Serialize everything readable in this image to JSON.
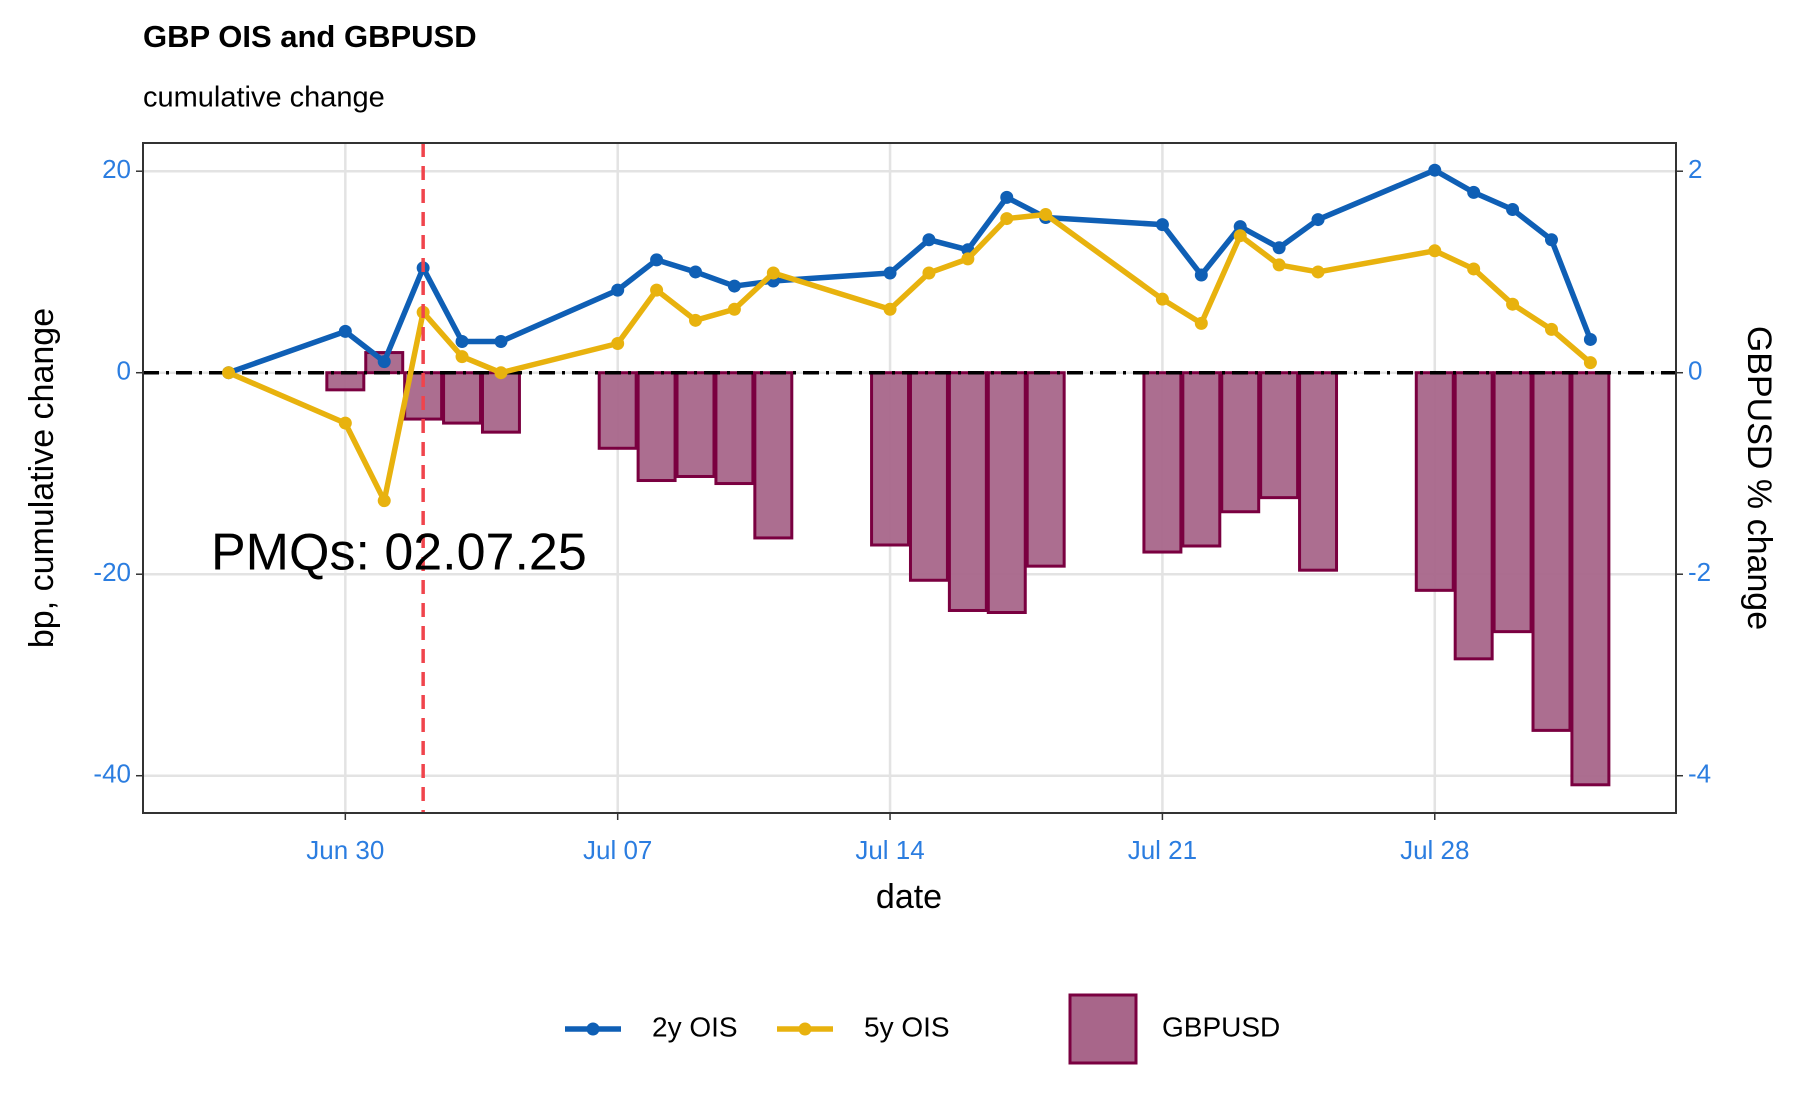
{
  "chart_data": {
    "type": "line+bar",
    "title": "GBP OIS and GBPUSD",
    "subtitle": "cumulative change",
    "xlabel": "date",
    "ylabel": "bp, cumulative change",
    "y2label": "GBPUSD % change",
    "x": [
      "Jun 27",
      "Jun 30",
      "Jul 01",
      "Jul 02",
      "Jul 03",
      "Jul 04",
      "Jul 07",
      "Jul 08",
      "Jul 09",
      "Jul 10",
      "Jul 11",
      "Jul 14",
      "Jul 15",
      "Jul 16",
      "Jul 17",
      "Jul 18",
      "Jul 21",
      "Jul 22",
      "Jul 23",
      "Jul 24",
      "Jul 25",
      "Jul 28",
      "Jul 29",
      "Jul 30",
      "Jul 31",
      "Aug 01"
    ],
    "xticks": [
      "Jun 30",
      "Jul 07",
      "Jul 14",
      "Jul 21",
      "Jul 28"
    ],
    "ylim": [
      -43.7,
      22.8
    ],
    "yticks": [
      -40,
      -20,
      0,
      20
    ],
    "y2lim": [
      -4.37,
      2.28
    ],
    "y2ticks": [
      -4,
      -2,
      0,
      2
    ],
    "grid": true,
    "legend": "bottom",
    "series": [
      {
        "name": "2y OIS",
        "type": "line",
        "color": "#0f5fb5",
        "values": [
          0,
          4.1,
          1.1,
          10.4,
          3.1,
          3.1,
          8.2,
          11.2,
          10.0,
          8.6,
          9.1,
          9.9,
          13.2,
          12.2,
          17.4,
          15.4,
          14.7,
          9.7,
          14.5,
          12.4,
          15.2,
          20.1,
          17.9,
          16.2,
          13.2,
          3.3
        ]
      },
      {
        "name": "5y OIS",
        "type": "line",
        "color": "#e8b20e",
        "values": [
          0,
          -5.0,
          -12.7,
          6.0,
          1.6,
          0,
          2.9,
          8.2,
          5.2,
          6.3,
          9.9,
          6.3,
          9.9,
          11.3,
          15.3,
          15.7,
          7.3,
          4.9,
          13.6,
          10.7,
          10.0,
          12.1,
          10.3,
          6.8,
          4.3,
          1.0
        ]
      },
      {
        "name": "GBPUSD",
        "type": "bar",
        "axis": "y2",
        "color": "#a8668a",
        "edgecolor": "#7a0040",
        "values": [
          null,
          -0.17,
          0.2,
          -0.46,
          -0.5,
          -0.59,
          -0.75,
          -1.07,
          -1.03,
          -1.1,
          -1.64,
          -1.71,
          -2.06,
          -2.36,
          -2.38,
          -1.92,
          -1.78,
          -1.72,
          -1.38,
          -1.24,
          -1.96,
          -2.16,
          -2.84,
          -2.57,
          -3.55,
          -4.09
        ]
      }
    ],
    "vline": {
      "x": "Jul 02",
      "color": "#f0444c"
    },
    "annotation": {
      "text": "PMQs: 02.07.25",
      "color": "#ff0000"
    }
  }
}
